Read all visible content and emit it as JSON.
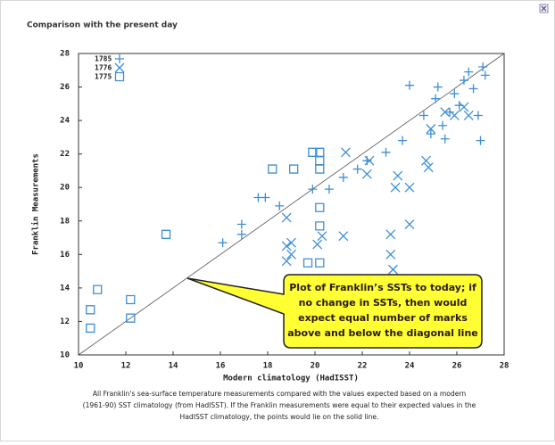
{
  "chart_data": {
    "type": "scatter",
    "title": "Comparison with the present day",
    "x_label": "Modern climatology (HadISST)",
    "y_label": "Franklin Measurements",
    "xlim": [
      10,
      28
    ],
    "ylim": [
      10,
      28
    ],
    "xticks": [
      10,
      12,
      14,
      16,
      18,
      20,
      22,
      24,
      26,
      28
    ],
    "yticks": [
      10,
      12,
      14,
      16,
      18,
      20,
      22,
      24,
      26,
      28
    ],
    "legend": "upper left",
    "series": [
      {
        "name": "1785",
        "marker": "plus",
        "color": "#3d8fd6",
        "x": [
          16.1,
          16.9,
          16.9,
          17.6,
          17.9,
          18.5,
          19.9,
          20.6,
          21.2,
          21.8,
          22.2,
          23.0,
          23.7,
          24.0,
          24.6,
          24.9,
          25.1,
          25.2,
          25.4,
          25.5,
          25.7,
          25.9,
          26.1,
          26.3,
          26.5,
          26.7,
          26.9,
          27.1,
          27.0,
          27.2
        ],
        "values": [
          16.7,
          17.2,
          17.8,
          19.4,
          19.4,
          18.9,
          19.9,
          19.9,
          20.6,
          21.1,
          21.6,
          22.1,
          22.8,
          26.1,
          24.3,
          23.2,
          25.3,
          26.0,
          23.7,
          22.9,
          24.5,
          25.6,
          24.9,
          26.4,
          26.9,
          25.9,
          24.3,
          27.2,
          22.8,
          26.7
        ]
      },
      {
        "name": "1776",
        "marker": "cross",
        "color": "#3d8fd6",
        "x": [
          18.8,
          18.8,
          19.0,
          18.8,
          19.0,
          20.1,
          20.3,
          21.2,
          21.3,
          22.2,
          22.3,
          23.2,
          23.2,
          23.3,
          23.4,
          23.5,
          24.0,
          24.0,
          24.7,
          24.8,
          24.9,
          25.5,
          25.9,
          26.3,
          26.5
        ],
        "values": [
          18.2,
          16.5,
          16.0,
          15.6,
          16.7,
          16.6,
          17.1,
          17.1,
          22.1,
          20.8,
          21.6,
          17.2,
          16.0,
          15.1,
          20.0,
          20.7,
          20.0,
          17.8,
          21.6,
          21.2,
          23.5,
          24.5,
          24.3,
          24.8,
          24.3
        ]
      },
      {
        "name": "1775",
        "marker": "square",
        "color": "#3d8fd6",
        "x": [
          10.5,
          10.5,
          10.8,
          12.2,
          12.2,
          13.7,
          18.2,
          19.1,
          19.9,
          20.2,
          20.2,
          20.2,
          20.2,
          20.2,
          19.7,
          20.2
        ],
        "values": [
          11.6,
          12.7,
          13.9,
          13.3,
          12.2,
          17.2,
          21.1,
          21.1,
          22.1,
          22.1,
          21.6,
          21.1,
          18.8,
          17.7,
          15.5,
          15.5
        ]
      }
    ],
    "annotation": [
      "Plot of Franklin’s SSTs to today; if",
      "no change in SSTs, then would",
      "expect equal number of marks",
      "above and below the diagonal line"
    ],
    "caption": [
      "All Franklin's sea-surface temperature measurements compared with the values expected based on a modern",
      "(1961-90) SST climatology (from HadISST). If the Franklin measurements were equal to their expected values in the",
      "HadISST climatology, the points would lie on the solid line."
    ]
  }
}
